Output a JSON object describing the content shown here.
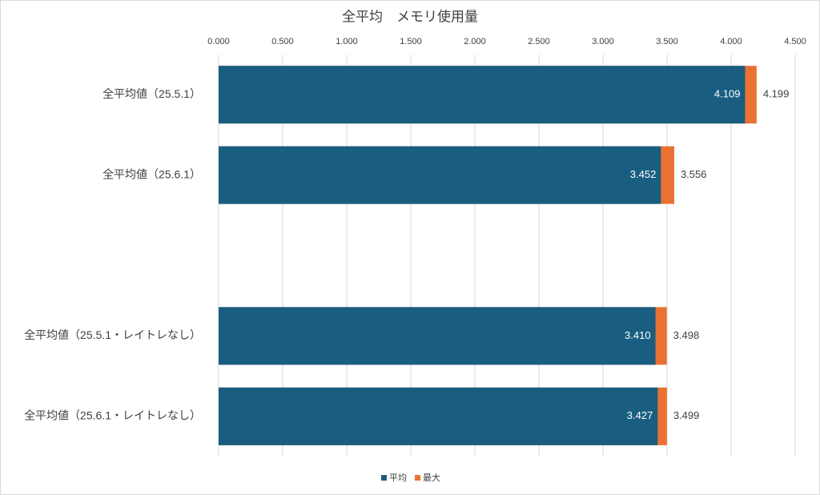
{
  "chart_data": {
    "type": "overlap-bar",
    "title": "全平均　メモリ使用量",
    "categories": [
      "全平均値（25.5.1）",
      "全平均値（25.6.1）",
      null,
      "全平均値（25.5.1・レイトレなし）",
      "全平均値（25.6.1・レイトレなし）"
    ],
    "series": [
      {
        "name": "平均",
        "color": "#195e80",
        "values": [
          4.109,
          3.452,
          null,
          3.41,
          3.427
        ],
        "value_labels": [
          "4.109",
          "3.452",
          null,
          "3.410",
          "3.427"
        ]
      },
      {
        "name": "最大",
        "color": "#e97132",
        "values": [
          4.199,
          3.556,
          null,
          3.498,
          3.499
        ],
        "value_labels": [
          "4.199",
          "3.556",
          null,
          "3.498",
          "3.499"
        ]
      }
    ],
    "xlim": [
      0,
      4.5
    ],
    "xticks": [
      {
        "value": 0,
        "label": "0.000"
      },
      {
        "value": 0.5,
        "label": "0.500"
      },
      {
        "value": 1,
        "label": "1.000"
      },
      {
        "value": 1.5,
        "label": "1.500"
      },
      {
        "value": 2,
        "label": "2.000"
      },
      {
        "value": 2.5,
        "label": "2.500"
      },
      {
        "value": 3,
        "label": "3.000"
      },
      {
        "value": 3.5,
        "label": "3.500"
      },
      {
        "value": 4,
        "label": "4.000"
      },
      {
        "value": 4.5,
        "label": "4.500"
      }
    ],
    "grid": true,
    "legend": "bottom"
  }
}
